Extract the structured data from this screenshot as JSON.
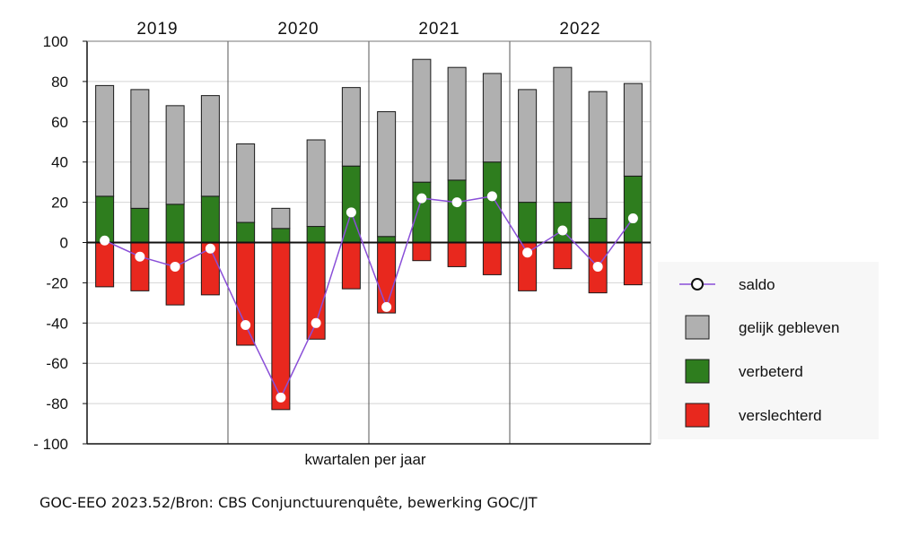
{
  "chart_data": {
    "type": "bar",
    "stacked": true,
    "categories": [
      "2019 Q1",
      "2019 Q2",
      "2019 Q3",
      "2019 Q4",
      "2020 Q1",
      "2020 Q2",
      "2020 Q3",
      "2020 Q4",
      "2021 Q1",
      "2021 Q2",
      "2021 Q3",
      "2021 Q4",
      "2022 Q1",
      "2022 Q2",
      "2022 Q3",
      "2022 Q4"
    ],
    "groups": [
      "2019",
      "2020",
      "2021",
      "2022"
    ],
    "xlabel": "kwartalen per jaar",
    "ylabel": "",
    "ylim": [
      -100,
      100
    ],
    "yticks": [
      100,
      80,
      60,
      40,
      20,
      0,
      -20,
      -40,
      -60,
      -80,
      -100
    ],
    "ytick_labels": [
      "100",
      "80",
      "60",
      "40",
      "20",
      "0",
      "-20",
      "-40",
      "-60",
      "-80",
      "- 100"
    ],
    "grid": true,
    "legend_position": "right",
    "series": [
      {
        "name": "gelijk gebleven",
        "type": "bar",
        "color": "#b0b0b0",
        "values": [
          55,
          59,
          49,
          50,
          39,
          10,
          43,
          39,
          62,
          61,
          56,
          44,
          56,
          67,
          63,
          46
        ]
      },
      {
        "name": "verbeterd",
        "type": "bar",
        "color": "#2e7d1e",
        "values": [
          23,
          17,
          19,
          23,
          10,
          7,
          8,
          38,
          3,
          30,
          31,
          40,
          20,
          20,
          12,
          33
        ]
      },
      {
        "name": "verslechterd",
        "type": "bar",
        "color": "#e8281e",
        "values": [
          -22,
          -24,
          -31,
          -26,
          -51,
          -83,
          -48,
          -23,
          -35,
          -9,
          -12,
          -16,
          -24,
          -13,
          -25,
          -21
        ]
      },
      {
        "name": "saldo",
        "type": "line",
        "color": "#8a4fd8",
        "values": [
          1,
          -7,
          -12,
          -3,
          -41,
          -77,
          -40,
          15,
          -32,
          22,
          20,
          23,
          -5,
          6,
          -12,
          12
        ]
      }
    ]
  },
  "source": "GOC-EEO 2023.52/Bron: CBS Conjunctuurenquête, bewerking GOC/JT"
}
